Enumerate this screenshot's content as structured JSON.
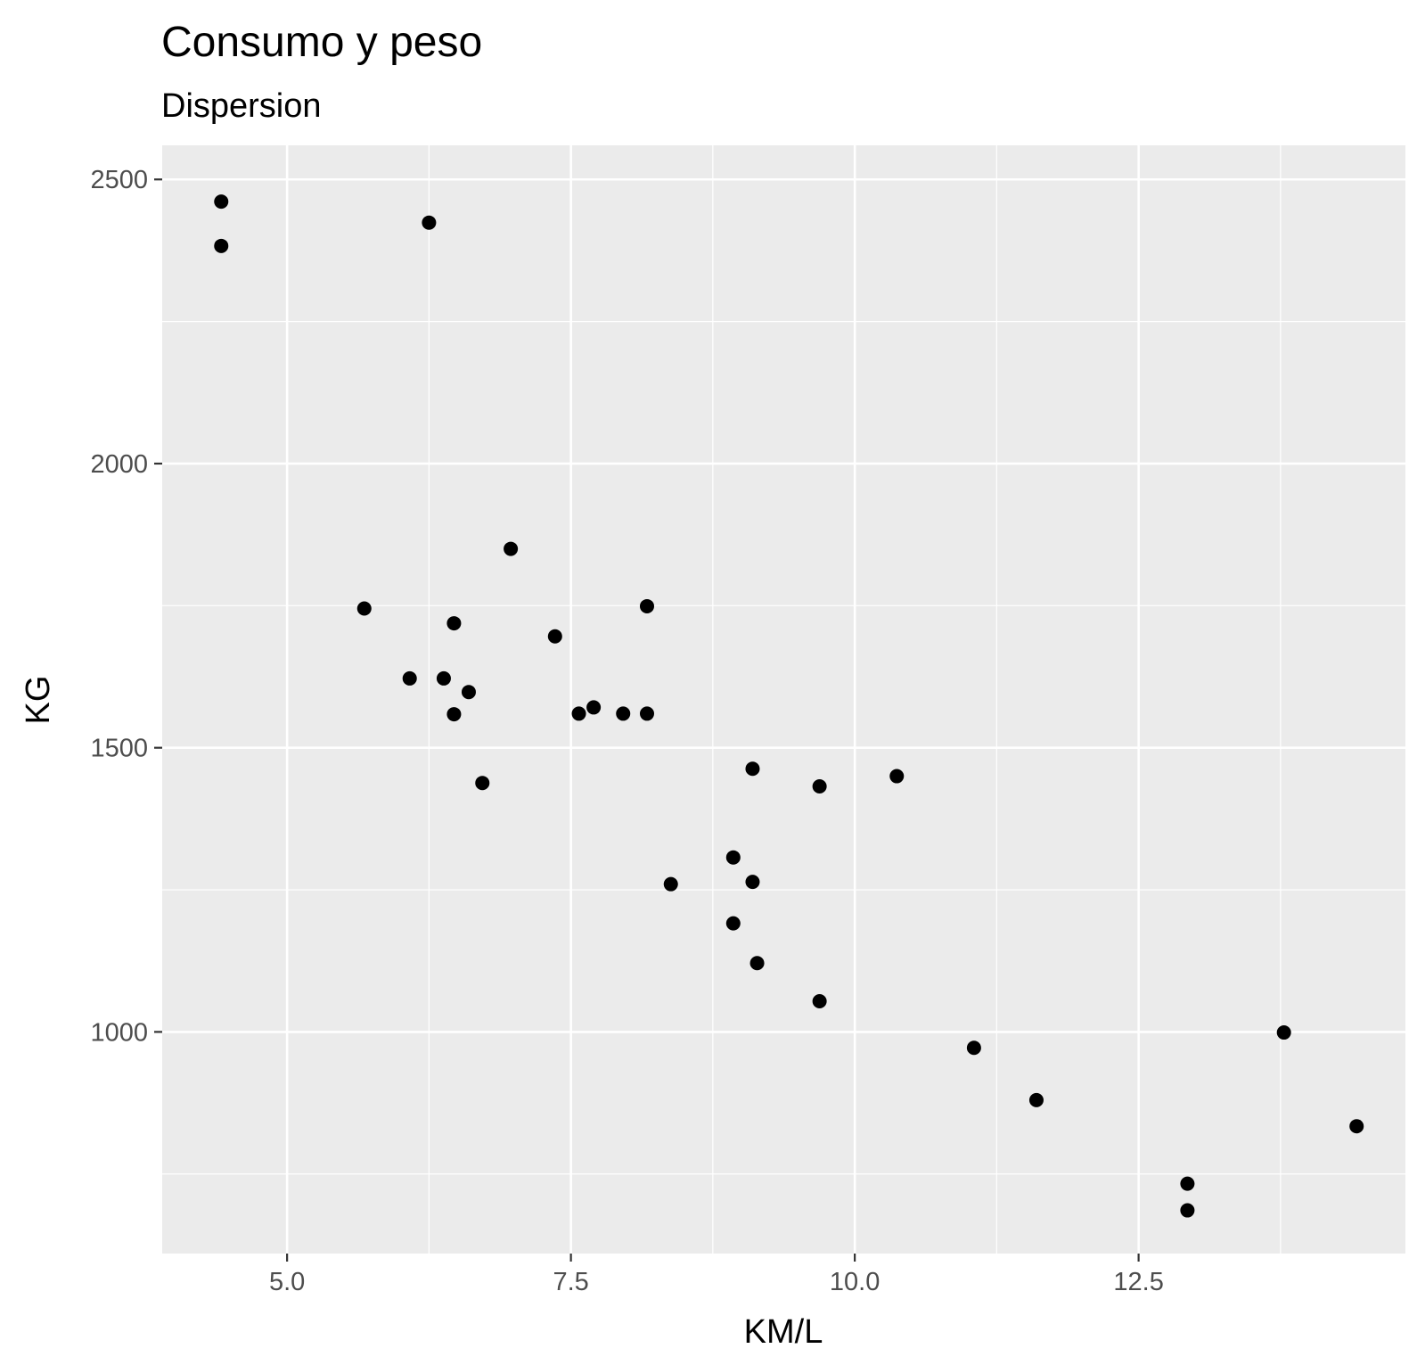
{
  "chart_data": {
    "type": "scatter",
    "title": "Consumo y peso",
    "subtitle": "Dispersion",
    "xlabel": "KM/L",
    "ylabel": "KG",
    "xlim": [
      3.9,
      14.85
    ],
    "ylim": [
      610,
      2560
    ],
    "x_ticks": [
      5.0,
      7.5,
      10.0,
      12.5
    ],
    "x_tick_labels": [
      "5.0",
      "7.5",
      "10.0",
      "12.5"
    ],
    "y_ticks": [
      1000,
      1500,
      2000,
      2500
    ],
    "y_tick_labels": [
      "1000",
      "1500",
      "2000",
      "2500"
    ],
    "x_minor": [
      6.25,
      8.75,
      11.25,
      13.75
    ],
    "y_minor": [
      750,
      1250,
      1750,
      2250
    ],
    "grid": true,
    "legend": "none",
    "colors": {
      "panel": "#ebebeb",
      "grid": "#ffffff",
      "point": "#000000",
      "tick": "#4d4d4d"
    },
    "points": [
      {
        "x": 4.42,
        "y": 2461
      },
      {
        "x": 4.42,
        "y": 2383
      },
      {
        "x": 6.25,
        "y": 2424
      },
      {
        "x": 5.68,
        "y": 1745
      },
      {
        "x": 6.08,
        "y": 1622
      },
      {
        "x": 6.38,
        "y": 1622
      },
      {
        "x": 6.47,
        "y": 1719
      },
      {
        "x": 6.47,
        "y": 1559
      },
      {
        "x": 6.6,
        "y": 1598
      },
      {
        "x": 6.72,
        "y": 1438
      },
      {
        "x": 6.97,
        "y": 1850
      },
      {
        "x": 7.36,
        "y": 1696
      },
      {
        "x": 7.57,
        "y": 1560
      },
      {
        "x": 7.7,
        "y": 1571
      },
      {
        "x": 7.96,
        "y": 1560
      },
      {
        "x": 8.17,
        "y": 1560
      },
      {
        "x": 8.17,
        "y": 1749
      },
      {
        "x": 8.38,
        "y": 1260
      },
      {
        "x": 8.93,
        "y": 1307
      },
      {
        "x": 8.93,
        "y": 1191
      },
      {
        "x": 9.1,
        "y": 1463
      },
      {
        "x": 9.1,
        "y": 1264
      },
      {
        "x": 9.14,
        "y": 1121
      },
      {
        "x": 9.69,
        "y": 1432
      },
      {
        "x": 9.69,
        "y": 1054
      },
      {
        "x": 10.37,
        "y": 1450
      },
      {
        "x": 11.05,
        "y": 972
      },
      {
        "x": 11.6,
        "y": 880
      },
      {
        "x": 12.93,
        "y": 733
      },
      {
        "x": 12.93,
        "y": 686
      },
      {
        "x": 13.78,
        "y": 999
      },
      {
        "x": 14.42,
        "y": 834
      }
    ]
  }
}
